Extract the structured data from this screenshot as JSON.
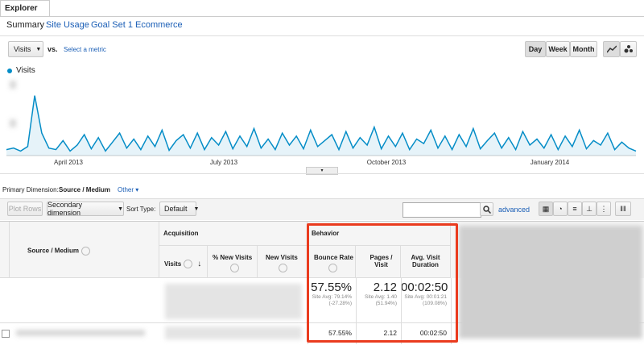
{
  "tabs": {
    "active": "Explorer"
  },
  "subtabs": [
    "Summary",
    "Site Usage",
    "Goal Set 1",
    "Ecommerce"
  ],
  "controls": {
    "metric": "Visits",
    "vs": "vs.",
    "select": "Select a metric",
    "periods": [
      "Day",
      "Week",
      "Month"
    ]
  },
  "chart": {
    "type": "line",
    "legend": "Visits",
    "color": "#058dc7",
    "x_labels": [
      "April 2013",
      "July 2013",
      "October 2013",
      "January 2014"
    ],
    "ylim": [
      0,
      100
    ],
    "values": [
      8,
      10,
      6,
      12,
      80,
      30,
      10,
      8,
      20,
      6,
      14,
      28,
      9,
      24,
      6,
      18,
      30,
      10,
      22,
      8,
      26,
      12,
      34,
      7,
      20,
      28,
      10,
      30,
      8,
      24,
      14,
      32,
      9,
      26,
      12,
      36,
      10,
      22,
      8,
      30,
      14,
      26,
      9,
      34,
      12,
      20,
      28,
      8,
      32,
      10,
      24,
      14,
      38,
      9,
      26,
      12,
      30,
      8,
      22,
      16,
      34,
      10,
      26,
      8,
      28,
      12,
      36,
      9,
      20,
      30,
      10,
      24,
      8,
      32,
      14,
      22,
      10,
      28,
      8,
      26,
      12,
      34,
      9,
      20,
      14,
      30,
      8,
      18,
      10,
      6
    ]
  },
  "dimension": {
    "label": "Primary Dimension:",
    "active": "Source / Medium",
    "other": "Other"
  },
  "toolbar": {
    "plot": "Plot Rows",
    "secondary": "Secondary dimension",
    "sort_label": "Sort Type:",
    "sort": "Default",
    "advanced": "advanced"
  },
  "table": {
    "groups": [
      "Acquisition",
      "Behavior"
    ],
    "columns": [
      "Source / Medium",
      "Visits",
      "% New Visits",
      "New Visits",
      "Bounce Rate",
      "Pages / Visit",
      "Avg. Visit Duration"
    ],
    "summary": [
      {
        "value": "57.55%",
        "note": "Site Avg:",
        "avg": "79.14%",
        "diff": "(-27.28%)"
      },
      {
        "value": "2.12",
        "note": "Site Avg:",
        "avg": "1.40",
        "diff": "(51.94%)"
      },
      {
        "value": "00:02:50",
        "note": "Site Avg:",
        "avg": "00:01:21",
        "diff": "(109.08%)"
      }
    ],
    "rows": [
      [
        "57.55%",
        "2.12",
        "00:02:50"
      ]
    ]
  }
}
